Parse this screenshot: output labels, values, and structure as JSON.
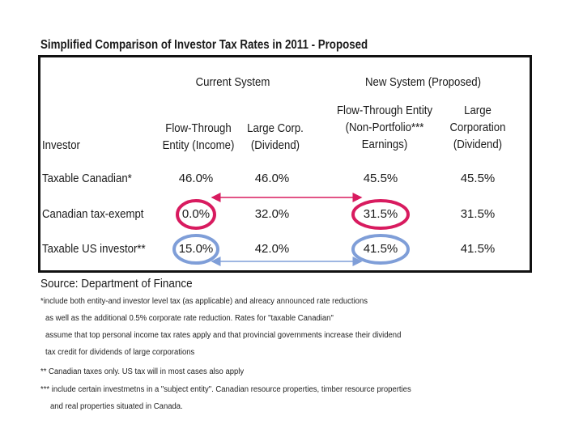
{
  "title": "Simplified Comparison of Investor Tax Rates in 2011 - Proposed",
  "groups": {
    "current": "Current System",
    "new": "New System (Proposed)"
  },
  "columns": {
    "investor": "Investor",
    "c1": [
      "Flow-Through",
      "Entity (Income)"
    ],
    "c2": [
      "Large Corp.",
      "(Dividend)"
    ],
    "c3": [
      "Flow-Through Entity",
      "(Non-Portfolio***",
      "Earnings)"
    ],
    "c4": [
      "Large",
      "Corporation",
      "(Dividend)"
    ]
  },
  "rows": [
    {
      "label": "Taxable Canadian*",
      "values": [
        "46.0%",
        "46.0%",
        "45.5%",
        "45.5%"
      ]
    },
    {
      "label": "Canadian tax-exempt",
      "values": [
        "0.0%",
        "32.0%",
        "31.5%",
        "31.5%"
      ]
    },
    {
      "label": "Taxable US investor**",
      "values": [
        "15.0%",
        "42.0%",
        "41.5%",
        "41.5%"
      ]
    }
  ],
  "highlight_colors": {
    "tax_exempt": "#d81b5f",
    "us_investor": "#7f9ed8"
  },
  "source": "Source: Department of Finance",
  "notes": [
    "*include both entity-and investor level tax (as applicable) and alreacy announced rate reductions",
    "as well as the additional 0.5% corporate rate reduction.  Rates for \"taxable Canadian\"",
    "assume that top personal income tax rates apply and that provincial governments increase their dividend",
    "tax credit for dividends of large corporations",
    "** Canadian taxes only.  US tax will in most cases also apply",
    "*** include certain investmetns in a \"subject entity\". Canadian resource properties, timber resource properties",
    "and real properties situated in Canada."
  ]
}
